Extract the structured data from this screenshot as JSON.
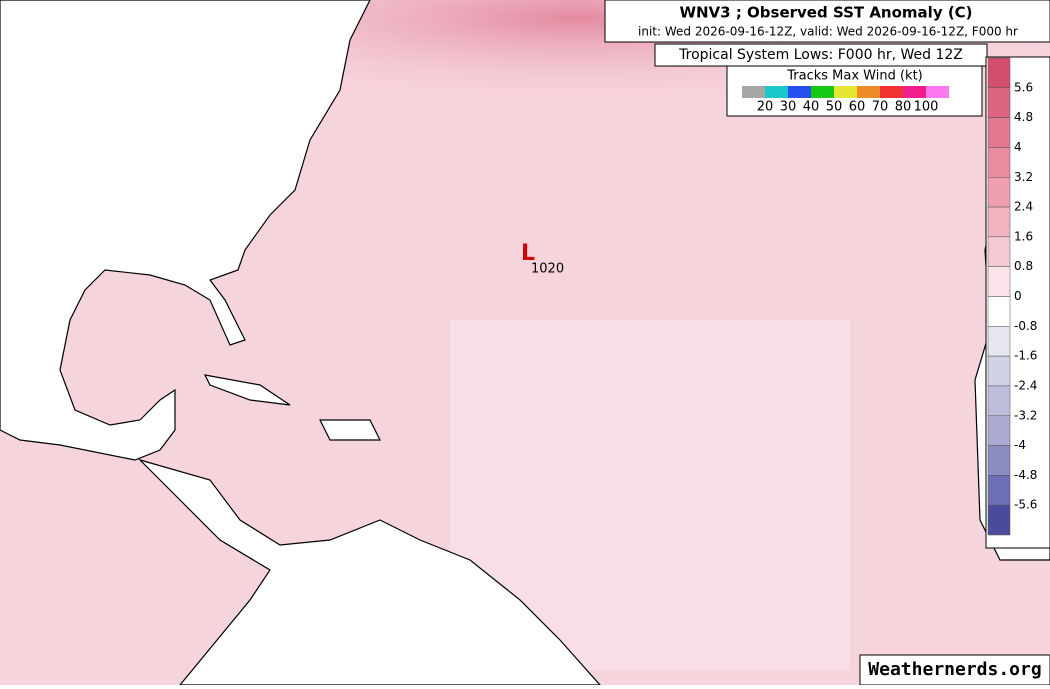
{
  "header": {
    "title": "WNV3 ; Observed SST Anomaly (C)",
    "subtitle": "init: Wed 2026-09-16-12Z, valid: Wed 2026-09-16-12Z, F000 hr"
  },
  "tracks_legend": {
    "heading": "Tropical System Lows: F000 hr, Wed 12Z",
    "title": "Tracks Max Wind (kt)",
    "colors": [
      "#a6a6a6",
      "#19c8c8",
      "#2850f0",
      "#14c814",
      "#e6e632",
      "#f08c28",
      "#f03232",
      "#f01e8c",
      "#ff78f0"
    ],
    "labels": [
      20,
      30,
      40,
      50,
      60,
      70,
      80,
      100
    ]
  },
  "colorbar": {
    "colors": [
      "#d2506e",
      "#dc6480",
      "#e27890",
      "#e88ca0",
      "#eea0b0",
      "#f2b4c0",
      "#f6c8d2",
      "#fbe4ea",
      "#ffffff",
      "#e6e6f0",
      "#d2d2e6",
      "#bebedc",
      "#aaaad2",
      "#8c8cc3",
      "#6e6eb4",
      "#4b4b9b"
    ],
    "ticks": [
      5.6,
      4.8,
      4,
      3.2,
      2.4,
      1.6,
      0.8,
      0,
      -0.8,
      -1.6,
      -2.4,
      -3.2,
      -4,
      -4.8,
      -5.6
    ]
  },
  "low": {
    "symbol": "L",
    "pressure": "1020"
  },
  "watermark": "Weathernerds.org"
}
